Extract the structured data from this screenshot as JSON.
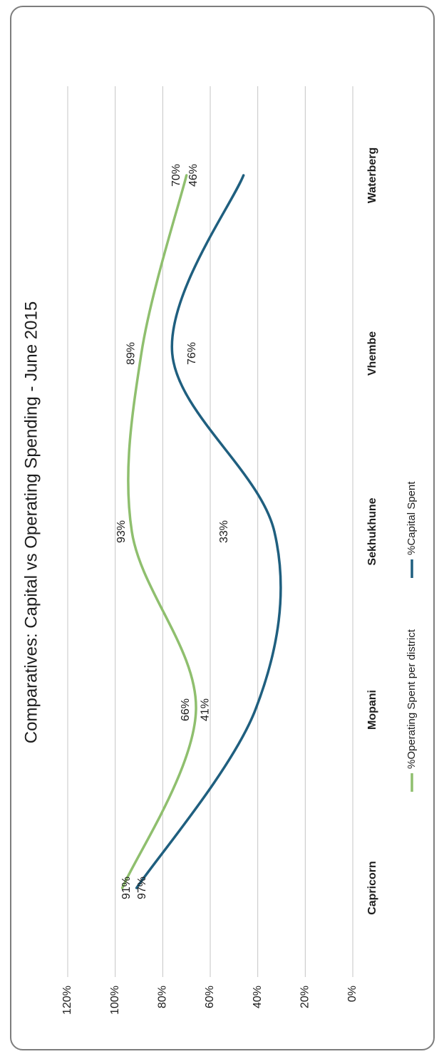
{
  "chart_data": {
    "type": "line",
    "title": "Comparatives: Capital vs Operating Spending - June 2015",
    "categories": [
      "Capricorn",
      "Mopani",
      "Sekhukhune",
      "Vhembe",
      "Waterberg"
    ],
    "y_ticks": [
      "0%",
      "20%",
      "40%",
      "60%",
      "80%",
      "100%",
      "120%"
    ],
    "ylim": [
      0,
      120
    ],
    "grid": true,
    "legend_position": "bottom",
    "series": [
      {
        "name": "%Operating Spent per district",
        "color": "#8fbf6e",
        "values": [
          97,
          66,
          93,
          89,
          70
        ],
        "labels": [
          "97%",
          "66%",
          "93%",
          "89%",
          "70%"
        ]
      },
      {
        "name": "%Capital Spent",
        "color": "#1f5f7f",
        "values": [
          91,
          41,
          33,
          76,
          46
        ],
        "labels": [
          "91%",
          "41%",
          "33%",
          "76%",
          "46%"
        ]
      }
    ]
  }
}
